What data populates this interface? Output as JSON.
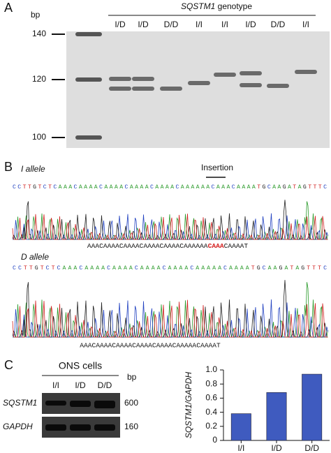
{
  "panel_a": {
    "label": "A",
    "bp": "bp",
    "gene": "SQSTM1",
    "title_rest": " genotype",
    "ladder": [
      "140",
      "120",
      "100"
    ],
    "lanes": [
      "I/D",
      "I/D",
      "D/D",
      "I/I",
      "I/I",
      "I/D",
      "D/D",
      "I/I"
    ]
  },
  "panel_b": {
    "label": "B",
    "i_allele": "I allele",
    "insertion": "Insertion",
    "seq1": "CCTTGTCTCAAACAAAACAAAACAAAACAAAACAAAAAACAAACAAAATGCAAGATAGTTTC",
    "read1_pre": "AAACAAAACAAAACAAAACAAAACAAAAAA",
    "read1_ins": "CAAA",
    "read1_post": "CAAAAT",
    "d_allele": "D allele",
    "seq2": "CCTTGTCTCAAACAAAACAAAACAAAACAAAACAAAAACAAAATGCAAGATAGTTTC",
    "read2": "AAACAAAACAAAACAAAACAAAACAAAAACAAAAT"
  },
  "panel_c": {
    "label": "C",
    "header": "ONS cells",
    "bp": "bp",
    "lanes": [
      "I/I",
      "I/D",
      "D/D"
    ],
    "rows": [
      {
        "gene": "SQSTM1",
        "size": "600"
      },
      {
        "gene": "GAPDH",
        "size": "160"
      }
    ]
  },
  "chart_data": {
    "type": "bar",
    "y_label": "SQSTM1/GAPDH",
    "categories": [
      "I/I",
      "I/D",
      "D/D"
    ],
    "values": [
      0.38,
      0.68,
      0.94
    ],
    "color": "#3f5bbf",
    "ylim": [
      0,
      1
    ],
    "yticks": [
      0,
      0.2,
      0.4,
      0.6,
      0.8,
      {
        "value": 1,
        "label": "1.0"
      }
    ]
  }
}
